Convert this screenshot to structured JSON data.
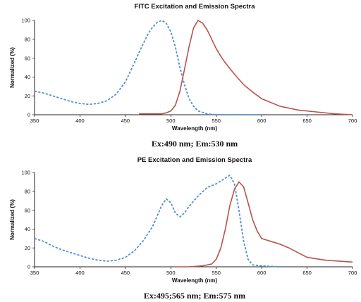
{
  "chart_data": [
    {
      "type": "line",
      "title": "FITC Excitation and Emission Spectra",
      "xlabel": "Wavelength (nm)",
      "ylabel": "Normalized (%)",
      "xlim": [
        350,
        700
      ],
      "ylim": [
        0,
        100
      ],
      "xticks": [
        350,
        400,
        450,
        500,
        550,
        600,
        650,
        700
      ],
      "yticks": [
        0,
        20,
        40,
        60,
        80,
        100
      ],
      "grid": false,
      "caption": "Ex:490 nm; Em:530 nm",
      "series": [
        {
          "style": "dashed",
          "color": "#4f8fd6",
          "x": [
            350,
            360,
            370,
            380,
            390,
            400,
            410,
            420,
            430,
            440,
            450,
            460,
            465,
            470,
            475,
            480,
            485,
            490,
            495,
            500,
            505,
            510,
            515,
            520,
            525,
            530,
            540,
            550,
            560,
            580,
            600
          ],
          "y": [
            25,
            23,
            20,
            17,
            14,
            12,
            11,
            12,
            15,
            22,
            35,
            55,
            66,
            76,
            86,
            93,
            98,
            100,
            97,
            88,
            72,
            50,
            32,
            17,
            9,
            4,
            1,
            0,
            0,
            0,
            0
          ]
        },
        {
          "style": "solid",
          "color": "#b9524b",
          "x": [
            465,
            480,
            490,
            495,
            500,
            505,
            510,
            515,
            520,
            525,
            530,
            535,
            540,
            545,
            550,
            555,
            560,
            570,
            580,
            590,
            600,
            620,
            640,
            660,
            680,
            700
          ],
          "y": [
            1,
            1,
            1,
            2,
            4,
            10,
            25,
            48,
            72,
            92,
            100,
            97,
            90,
            80,
            70,
            62,
            55,
            43,
            32,
            24,
            17,
            9,
            5,
            3,
            1,
            0
          ]
        }
      ]
    },
    {
      "type": "line",
      "title": "PE Excitation and Emission Spectra",
      "xlabel": "Wavelength (nm)",
      "ylabel": "Normalized (%)",
      "xlim": [
        350,
        700
      ],
      "ylim": [
        0,
        100
      ],
      "xticks": [
        350,
        400,
        450,
        500,
        550,
        600,
        650,
        700
      ],
      "yticks": [
        0,
        20,
        40,
        60,
        80,
        100
      ],
      "grid": false,
      "caption": "Ex:495;565 nm; Em:575 nm",
      "series": [
        {
          "style": "dashed",
          "color": "#4f8fd6",
          "x": [
            350,
            360,
            370,
            380,
            390,
            400,
            410,
            420,
            430,
            440,
            450,
            460,
            470,
            480,
            490,
            495,
            500,
            505,
            510,
            515,
            520,
            530,
            540,
            550,
            560,
            565,
            570,
            575,
            580,
            585,
            590,
            600,
            620
          ],
          "y": [
            30,
            27,
            22,
            18,
            15,
            12,
            9,
            7,
            6,
            7,
            10,
            17,
            28,
            43,
            65,
            72,
            68,
            57,
            53,
            57,
            64,
            75,
            84,
            88,
            94,
            97,
            88,
            60,
            28,
            8,
            2,
            1,
            0
          ]
        },
        {
          "style": "solid",
          "color": "#b9524b",
          "x": [
            505,
            520,
            535,
            545,
            550,
            555,
            560,
            565,
            570,
            575,
            580,
            585,
            590,
            595,
            600,
            610,
            620,
            630,
            640,
            650,
            670,
            700
          ],
          "y": [
            0,
            0,
            1,
            3,
            8,
            20,
            40,
            65,
            82,
            90,
            85,
            68,
            50,
            38,
            30,
            27,
            24,
            20,
            15,
            10,
            7,
            5
          ]
        }
      ]
    }
  ]
}
